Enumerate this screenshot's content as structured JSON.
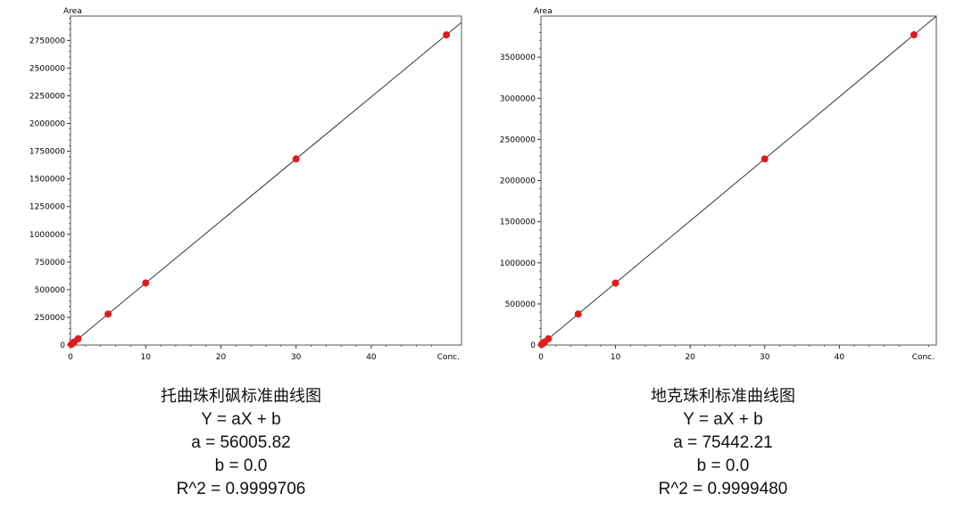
{
  "chart_data": [
    {
      "type": "scatter",
      "title": "托曲珠利砜标准曲线图",
      "xlabel": "Conc.",
      "ylabel": "Area",
      "xlim": [
        0,
        52
      ],
      "ylim": [
        0,
        2970000
      ],
      "xticks": [
        "0",
        "10",
        "20",
        "30",
        "40"
      ],
      "yticks": [
        "0",
        "250000",
        "500000",
        "750000",
        "1000000",
        "1250000",
        "1500000",
        "1750000",
        "2000000",
        "2250000",
        "2500000",
        "2750000"
      ],
      "x": [
        0.1,
        0.25,
        0.5,
        1,
        5,
        10,
        30,
        50
      ],
      "y": [
        5600,
        14000,
        28000,
        56000,
        280000,
        560000,
        1680000,
        2800000
      ],
      "fit": {
        "slope": 56005.82,
        "intercept": 0.0
      },
      "marker_color": "#e31a1c",
      "equation": "Y = aX + b",
      "a_text": "a = 56005.82",
      "b_text": "b = 0.0",
      "r2_text": "R^2 = 0.9999706"
    },
    {
      "type": "scatter",
      "title": "地克珠利标准曲线图",
      "xlabel": "Conc.",
      "ylabel": "Area",
      "xlim": [
        0,
        53
      ],
      "ylim": [
        0,
        4000000
      ],
      "xticks": [
        "0",
        "10",
        "20",
        "30",
        "40"
      ],
      "yticks": [
        "0",
        "500000",
        "1000000",
        "1500000",
        "2000000",
        "2500000",
        "3000000",
        "3500000"
      ],
      "x": [
        0.1,
        0.25,
        0.5,
        1,
        5,
        10,
        30,
        50
      ],
      "y": [
        7500,
        19000,
        37700,
        75400,
        377000,
        754000,
        2263000,
        3772000
      ],
      "fit": {
        "slope": 75442.21,
        "intercept": 0.0
      },
      "marker_color": "#e31a1c",
      "equation": "Y = aX + b",
      "a_text": "a = 75442.21",
      "b_text": "b = 0.0",
      "r2_text": "R^2 = 0.9999480"
    }
  ]
}
